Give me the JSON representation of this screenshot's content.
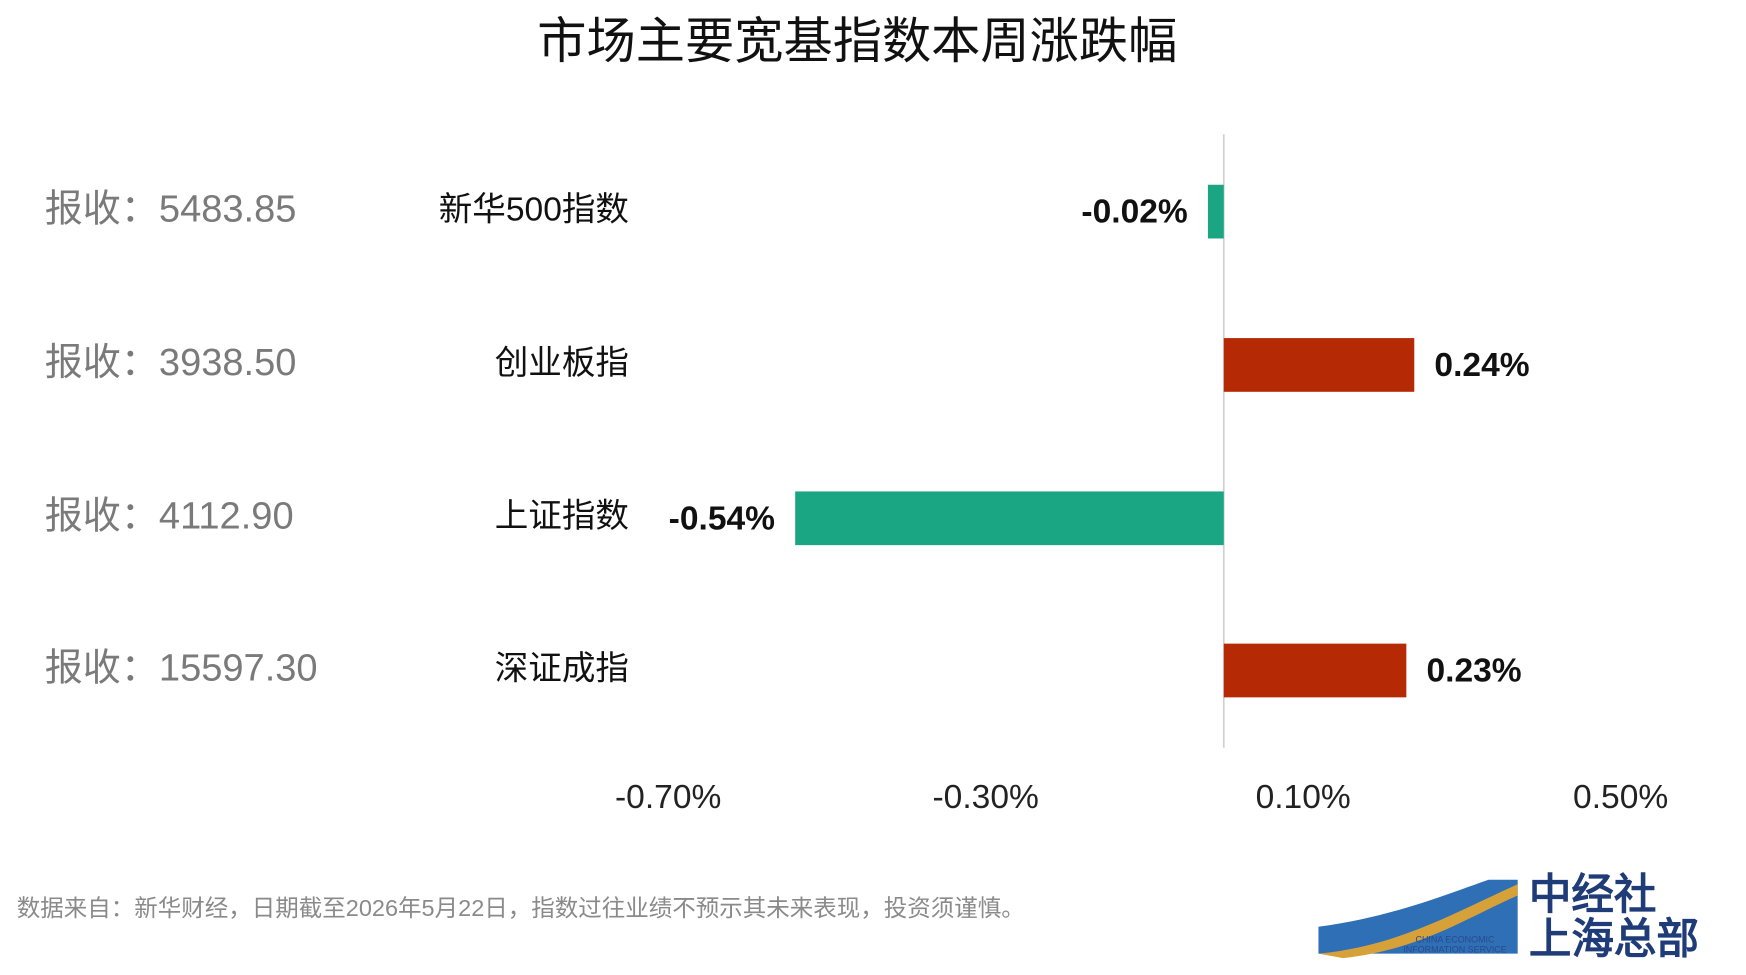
{
  "chart_data": {
    "type": "hbar",
    "title": "市场主要宽基指数本周涨跌幅",
    "categories": [
      "新华500指数",
      "创业板指",
      "上证指数",
      "深证成指"
    ],
    "values": [
      -0.02,
      0.24,
      -0.54,
      0.23
    ],
    "value_labels": [
      "-0.02%",
      "0.24%",
      "-0.54%",
      "0.23%"
    ],
    "colors": [
      "#1aa683",
      "#b52a05",
      "#1aa683",
      "#b52a05"
    ],
    "annotations": [
      "报收：5483.85",
      "报收：3938.50",
      "报收：4112.90",
      "报收：15597.30"
    ],
    "xlim": [
      -0.7,
      0.5
    ],
    "xticks": [
      {
        "value": -0.7,
        "label": "-0.70%"
      },
      {
        "value": -0.3,
        "label": "-0.30%"
      },
      {
        "value": 0.1,
        "label": "0.10%"
      },
      {
        "value": 0.5,
        "label": "0.50%"
      }
    ],
    "grid": false,
    "source": "数据来自：新华财经，日期截至2026年5月22日，指数过往业绩不预示其未来表现，投资须谨慎。",
    "logo": {
      "name": "中经社",
      "sub": "上海总部",
      "en_line1": "CHINA ECONOMIC",
      "en_line2": "INFORMATION SERVICE"
    }
  }
}
